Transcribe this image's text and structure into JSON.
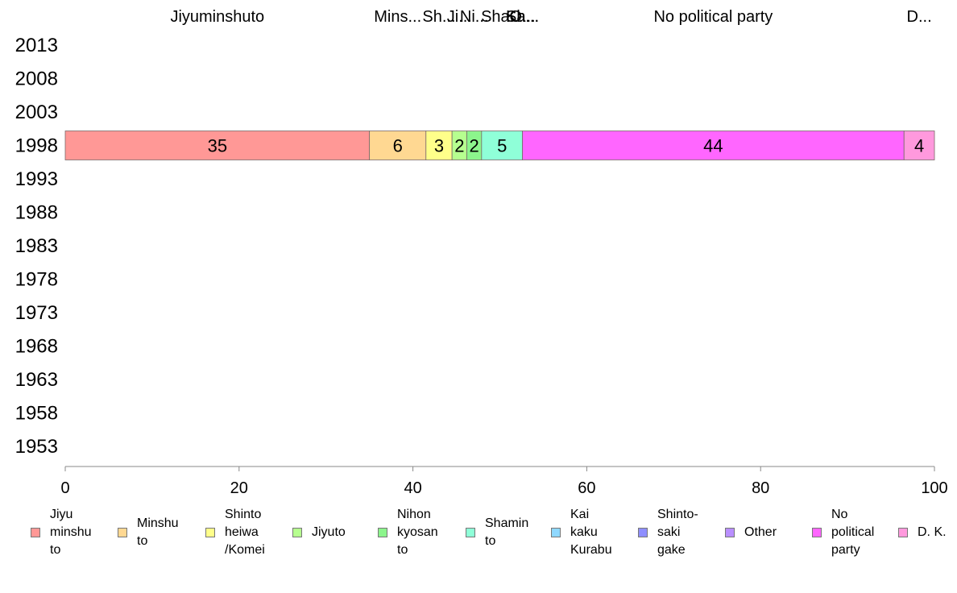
{
  "chart_data": {
    "type": "bar",
    "orientation": "horizontal",
    "stacked": true,
    "categories": [
      "2013",
      "2008",
      "2003",
      "1998",
      "1993",
      "1988",
      "1983",
      "1978",
      "1973",
      "1968",
      "1963",
      "1958",
      "1953"
    ],
    "xlim": [
      0,
      100
    ],
    "x_ticks": [
      "0",
      "20",
      "40",
      "60",
      "80",
      "100"
    ],
    "grid": false,
    "legend_position": "bottom",
    "series": [
      {
        "name": "Jiyu\nminshu\nto",
        "top_label": "Jiyuminshuto",
        "color": "#ff9896",
        "values": [
          null,
          null,
          null,
          35,
          null,
          null,
          null,
          null,
          null,
          null,
          null,
          null,
          null
        ]
      },
      {
        "name": "Minshu\nto",
        "top_label": "Mins...",
        "color": "#ffd892",
        "values": [
          null,
          null,
          null,
          6.5,
          null,
          null,
          null,
          null,
          null,
          null,
          null,
          null,
          null
        ]
      },
      {
        "name": "Shinto\nheiwa\n/Komei",
        "top_label": "Sh...",
        "color": "#ffff8a",
        "values": [
          null,
          null,
          null,
          3,
          null,
          null,
          null,
          null,
          null,
          null,
          null,
          null,
          null
        ]
      },
      {
        "name": "Jiyuto",
        "top_label": "Ji...",
        "color": "#b6ff8f",
        "values": [
          null,
          null,
          null,
          1.7,
          null,
          null,
          null,
          null,
          null,
          null,
          null,
          null,
          null
        ]
      },
      {
        "name": "Nihon\nkyosan\nto",
        "top_label": "Ni...",
        "color": "#8cf58c",
        "values": [
          null,
          null,
          null,
          1.7,
          null,
          null,
          null,
          null,
          null,
          null,
          null,
          null,
          null
        ]
      },
      {
        "name": "Shamin\nto",
        "top_label": "Sha...",
        "color": "#8fffd8",
        "values": [
          null,
          null,
          null,
          4.7,
          null,
          null,
          null,
          null,
          null,
          null,
          null,
          null,
          null
        ]
      },
      {
        "name": "Kai\nkaku\nKurabu",
        "top_label": "Ka...",
        "color": "#8fd8ff",
        "values": [
          null,
          null,
          null,
          0,
          null,
          null,
          null,
          null,
          null,
          null,
          null,
          null,
          null
        ]
      },
      {
        "name": "Shinto-\nsaki\ngake",
        "top_label": "Sh...",
        "color": "#8f8fff",
        "values": [
          null,
          null,
          null,
          0,
          null,
          null,
          null,
          null,
          null,
          null,
          null,
          null,
          null
        ]
      },
      {
        "name": "Other",
        "top_label": "O...",
        "color": "#b98fff",
        "values": [
          null,
          null,
          null,
          0,
          null,
          null,
          null,
          null,
          null,
          null,
          null,
          null,
          null
        ]
      },
      {
        "name": "No\npolitical\nparty",
        "top_label": "No political party",
        "color": "#ff66ff",
        "values": [
          null,
          null,
          null,
          43.9,
          null,
          null,
          null,
          null,
          null,
          null,
          null,
          null,
          null
        ]
      },
      {
        "name": "D. K.",
        "top_label": "D...",
        "color": "#ff99dd",
        "values": [
          null,
          null,
          null,
          3.5,
          null,
          null,
          null,
          null,
          null,
          null,
          null,
          null,
          null
        ]
      }
    ],
    "data_labels": {
      "1998": [
        "35",
        "6",
        "3",
        "2",
        "2",
        "5",
        "",
        "",
        "",
        "44",
        "4"
      ]
    }
  }
}
